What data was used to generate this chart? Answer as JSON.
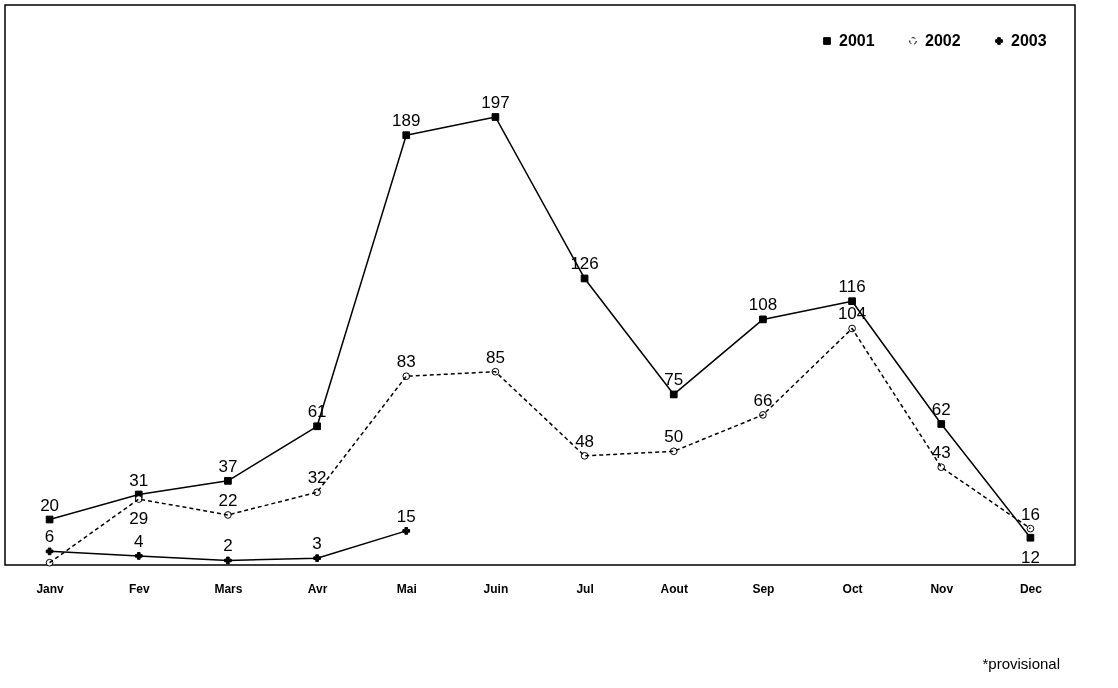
{
  "chart_data": {
    "type": "line",
    "categories": [
      "Janv",
      "Fev",
      "Mars",
      "Avr",
      "Mai",
      "Juin",
      "Jul",
      "Aout",
      "Sep",
      "Oct",
      "Nov",
      "Dec"
    ],
    "series": [
      {
        "name": "2001",
        "color": "#000000",
        "marker": "square",
        "line_style": "solid",
        "values": [
          20,
          31,
          37,
          61,
          189,
          197,
          126,
          75,
          108,
          116,
          62,
          12
        ],
        "value_labels": [
          "20",
          "31",
          "37",
          "61",
          "189",
          "197",
          "126",
          "75",
          "108",
          "116",
          "62",
          "12"
        ]
      },
      {
        "name": "2002",
        "color": "#000000",
        "marker": "circle",
        "line_style": "dashed",
        "values": [
          1,
          29,
          22,
          32,
          83,
          85,
          48,
          50,
          66,
          104,
          43,
          16
        ],
        "value_labels": [
          null,
          "29",
          "22",
          "32",
          "83",
          "85",
          "48",
          "50",
          "66",
          "104",
          "43",
          "16"
        ]
      },
      {
        "name": "2003",
        "color": "#000000",
        "marker": "cross",
        "line_style": "solid",
        "values": [
          6,
          4,
          2,
          3,
          15,
          null,
          null,
          null,
          null,
          null,
          null,
          null
        ],
        "value_labels": [
          "6",
          "4",
          "2",
          "3",
          "15",
          null,
          null,
          null,
          null,
          null,
          null,
          null
        ]
      }
    ],
    "legend": "top right",
    "grid": false,
    "tick_labels": "x",
    "annotations": [
      "*provisional"
    ]
  }
}
